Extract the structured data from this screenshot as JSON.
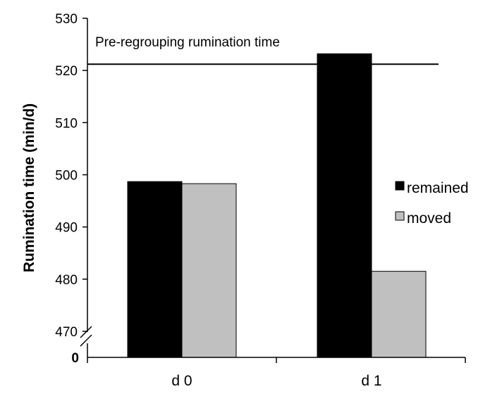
{
  "chart_data": {
    "type": "bar",
    "categories": [
      "d 0",
      "d 1"
    ],
    "series": [
      {
        "name": "remained",
        "values": [
          498.7,
          523.2
        ],
        "color": "#000000"
      },
      {
        "name": "moved",
        "values": [
          498.3,
          481.5
        ],
        "color": "#c0c0c0"
      }
    ],
    "ylabel": "Rumination time (min/d)",
    "xlabel": "",
    "ylim": [
      465,
      530
    ],
    "yticks": [
      470,
      480,
      490,
      500,
      510,
      520,
      530
    ],
    "axis_break": true,
    "axis_zero_label": "0",
    "reference_line": {
      "value": 521.2,
      "label": "Pre-regrouping rumination time"
    },
    "legend_position": "right",
    "grid": false
  }
}
